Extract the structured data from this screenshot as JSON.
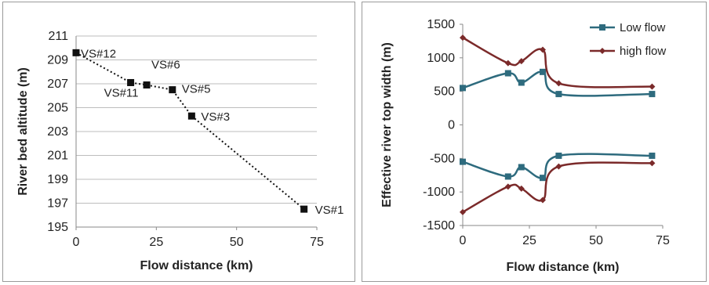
{
  "chart_data": [
    {
      "type": "scatter",
      "xlabel": "Flow distance (km)",
      "ylabel": "River bed altitude (m)",
      "xlim": [
        0,
        75
      ],
      "ylim": [
        195,
        211
      ],
      "xticks": [
        0,
        25,
        50,
        75
      ],
      "yticks": [
        195,
        197,
        199,
        201,
        203,
        205,
        207,
        209,
        211
      ],
      "grid": "horizontal",
      "line_style": "dotted",
      "series": [
        {
          "points": [
            {
              "x": 0,
              "y": 209.6,
              "label": "VS#12"
            },
            {
              "x": 17,
              "y": 207.1,
              "label": "VS#11"
            },
            {
              "x": 22,
              "y": 206.9,
              "label": "VS#6"
            },
            {
              "x": 30,
              "y": 206.5,
              "label": "VS#5"
            },
            {
              "x": 36,
              "y": 204.3,
              "label": "VS#3"
            },
            {
              "x": 71,
              "y": 196.5,
              "label": "VS#1"
            }
          ]
        }
      ]
    },
    {
      "type": "line",
      "xlabel": "Flow distance (km)",
      "ylabel": "Effective river top width (m)",
      "xlim": [
        0,
        75
      ],
      "ylim": [
        -1500,
        1500
      ],
      "xticks": [
        0,
        25,
        50,
        75
      ],
      "yticks": [
        -1500,
        -1000,
        -500,
        0,
        500,
        1000,
        1500
      ],
      "grid": "none",
      "legend_position": "top-right",
      "series": [
        {
          "name": "Low flow",
          "color": "#2e6b7e",
          "marker": "square",
          "branches": [
            {
              "x": [
                0,
                17,
                22,
                30,
                36,
                71
              ],
              "y": [
                550,
                770,
                630,
                790,
                460,
                460
              ]
            },
            {
              "x": [
                0,
                17,
                22,
                30,
                36,
                71
              ],
              "y": [
                -550,
                -770,
                -630,
                -790,
                -460,
                -460
              ]
            }
          ]
        },
        {
          "name": "high flow",
          "color": "#7b2a2a",
          "marker": "diamond",
          "branches": [
            {
              "x": [
                0,
                17,
                22,
                30,
                36,
                71
              ],
              "y": [
                1300,
                920,
                950,
                1120,
                620,
                570
              ]
            },
            {
              "x": [
                0,
                17,
                22,
                30,
                36,
                71
              ],
              "y": [
                -1300,
                -920,
                -950,
                -1120,
                -620,
                -570
              ]
            }
          ]
        }
      ]
    }
  ]
}
